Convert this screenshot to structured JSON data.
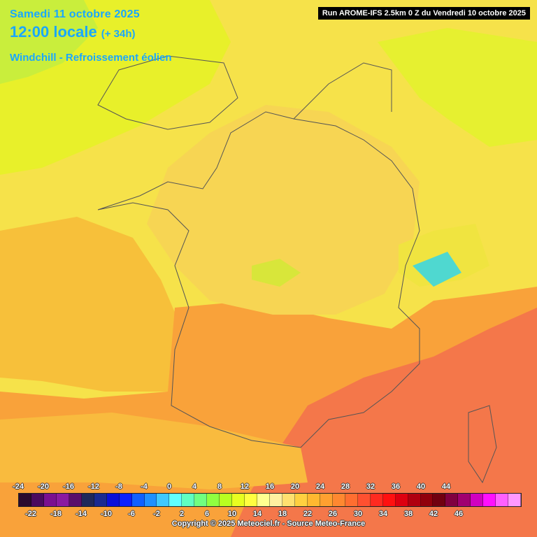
{
  "header": {
    "date": "Samedi 11 octobre 2025",
    "time": "12:00 locale",
    "lead": "(+ 34h)",
    "parameter": "Windchill - Refroissement éolien",
    "run": "Run AROME-IFS 2.5km 0 Z du Vendredi 10 octobre 2025"
  },
  "legend": {
    "upper_labels": [
      "-24",
      "-20",
      "-16",
      "-12",
      "-8",
      "-4",
      "0",
      "4",
      "8",
      "12",
      "16",
      "20",
      "24",
      "28",
      "32",
      "36",
      "40",
      "44"
    ],
    "lower_labels": [
      "-22",
      "-18",
      "-14",
      "-10",
      "-6",
      "-2",
      "2",
      "6",
      "10",
      "14",
      "18",
      "22",
      "26",
      "30",
      "34",
      "38",
      "42",
      "46"
    ],
    "colors": [
      "#2a0a2e",
      "#4a0a5e",
      "#7a1090",
      "#8a1aa0",
      "#5a0e6a",
      "#20285a",
      "#1a2a90",
      "#0a10d8",
      "#0a20ff",
      "#1060ff",
      "#2090ff",
      "#40c8ff",
      "#60ffff",
      "#60ffc0",
      "#70ff80",
      "#90ff40",
      "#b8ff20",
      "#e8ff20",
      "#ffff40",
      "#ffff90",
      "#fff0a0",
      "#ffe070",
      "#ffd040",
      "#ffb830",
      "#ffa030",
      "#ff8830",
      "#ff6e30",
      "#ff5030",
      "#ff2a20",
      "#ff1010",
      "#dd0010",
      "#b00010",
      "#90000c",
      "#700010",
      "#800040",
      "#a00070",
      "#d000c0",
      "#ff10ff",
      "#ff60ff",
      "#ff98ff"
    ]
  },
  "copyright": "Copyright © 2025 Meteociel.fr - Source Meteo-France"
}
